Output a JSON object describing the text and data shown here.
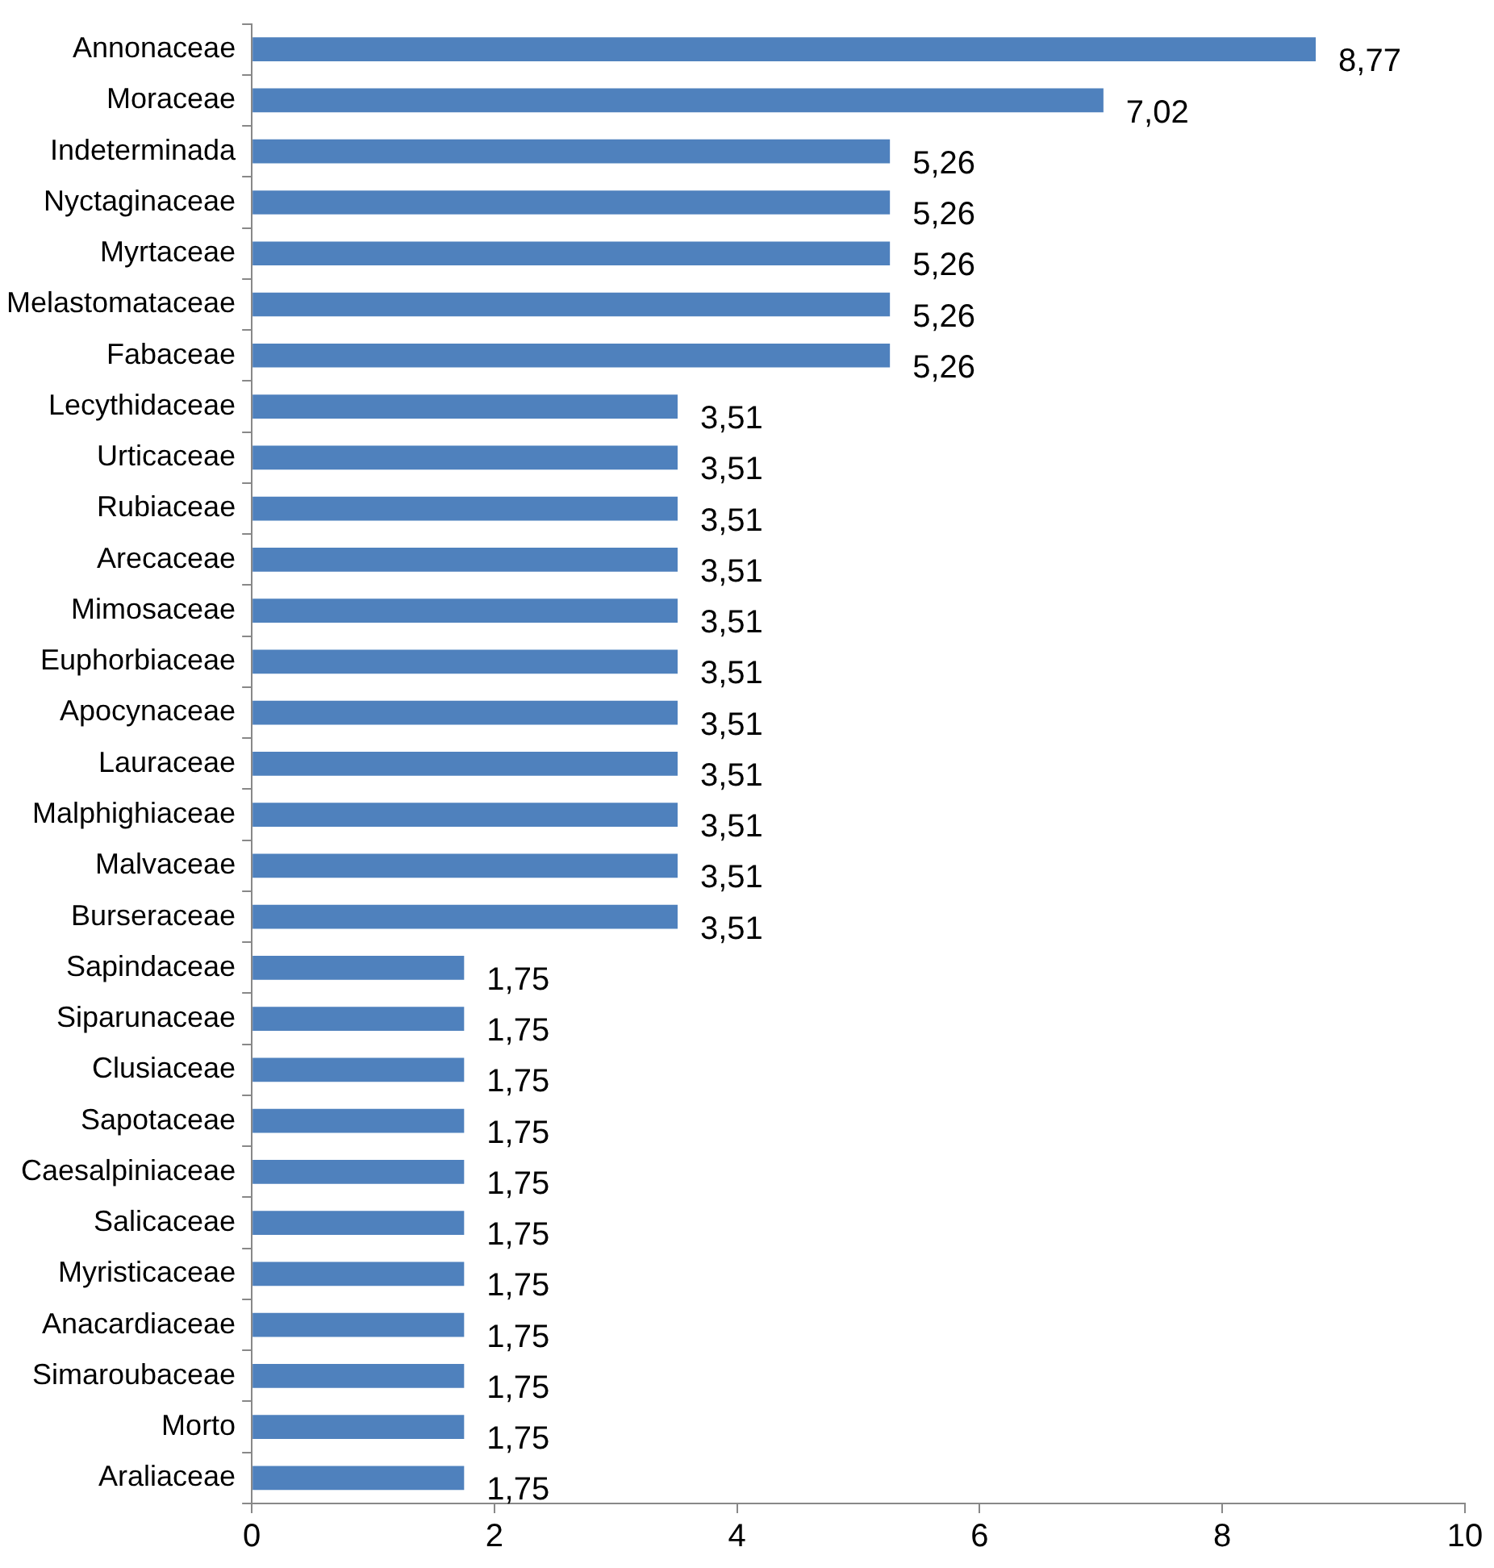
{
  "chart_data": {
    "type": "bar",
    "orientation": "horizontal",
    "categories": [
      "Annonaceae",
      "Moraceae",
      "Indeterminada",
      "Nyctaginaceae",
      "Myrtaceae",
      "Melastomataceae",
      "Fabaceae",
      "Lecythidaceae",
      "Urticaceae",
      "Rubiaceae",
      "Arecaceae",
      "Mimosaceae",
      "Euphorbiaceae",
      "Apocynaceae",
      "Lauraceae",
      "Malphighiaceae",
      "Malvaceae",
      "Burseraceae",
      "Sapindaceae",
      "Siparunaceae",
      "Clusiaceae",
      "Sapotaceae",
      "Caesalpiniaceae",
      "Salicaceae",
      "Myristicaceae",
      "Anacardiaceae",
      "Simaroubaceae",
      "Morto",
      "Araliaceae"
    ],
    "values": [
      8.77,
      7.02,
      5.26,
      5.26,
      5.26,
      5.26,
      5.26,
      3.51,
      3.51,
      3.51,
      3.51,
      3.51,
      3.51,
      3.51,
      3.51,
      3.51,
      3.51,
      3.51,
      1.75,
      1.75,
      1.75,
      1.75,
      1.75,
      1.75,
      1.75,
      1.75,
      1.75,
      1.75,
      1.75
    ],
    "value_labels": [
      "8,77",
      "7,02",
      "5,26",
      "5,26",
      "5,26",
      "5,26",
      "5,26",
      "3,51",
      "3,51",
      "3,51",
      "3,51",
      "3,51",
      "3,51",
      "3,51",
      "3,51",
      "3,51",
      "3,51",
      "3,51",
      "1,75",
      "1,75",
      "1,75",
      "1,75",
      "1,75",
      "1,75",
      "1,75",
      "1,75",
      "1,75",
      "1,75",
      "1,75"
    ],
    "color": "#4f81bd",
    "xlim": [
      0,
      10
    ],
    "xticks": [
      0,
      2,
      4,
      6,
      8,
      10
    ],
    "grid": false,
    "legend": false
  }
}
